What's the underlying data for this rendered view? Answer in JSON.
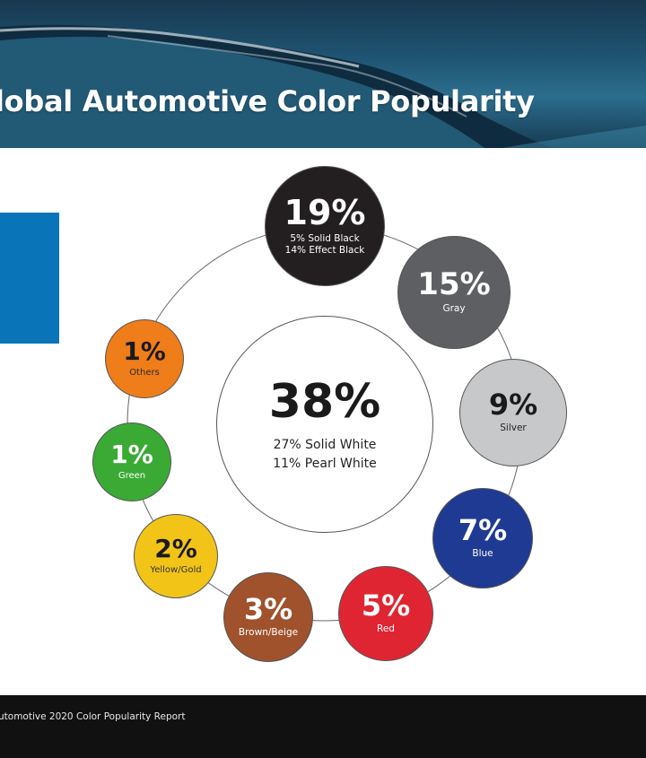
{
  "header": {
    "title": "lobal Automotive Color Popularity"
  },
  "footer": {
    "source": "utomotive 2020 Color Popularity Report"
  },
  "chart_data": {
    "type": "pie",
    "title": "lobal Automotive Color Popularity",
    "center": {
      "color": "White",
      "value": 38,
      "label": "38%",
      "details": [
        "27% Solid White",
        "11% Pearl White"
      ]
    },
    "slices": [
      {
        "name": "Black",
        "value": 19,
        "label": "19%",
        "details": [
          "5% Solid Black",
          "14% Effect Black"
        ],
        "color": "#231f20"
      },
      {
        "name": "Gray",
        "value": 15,
        "label": "15%",
        "details": [
          "Gray"
        ],
        "color": "#5d5f62"
      },
      {
        "name": "Silver",
        "value": 9,
        "label": "9%",
        "details": [
          "Silver"
        ],
        "color": "#c7c8ca"
      },
      {
        "name": "Blue",
        "value": 7,
        "label": "7%",
        "details": [
          "Blue"
        ],
        "color": "#1f3a93"
      },
      {
        "name": "Red",
        "value": 5,
        "label": "5%",
        "details": [
          "Red"
        ],
        "color": "#e02532"
      },
      {
        "name": "Brown/Beige",
        "value": 3,
        "label": "3%",
        "details": [
          "Brown/Beige"
        ],
        "color": "#a0522d"
      },
      {
        "name": "Yellow/Gold",
        "value": 2,
        "label": "2%",
        "details": [
          "Yellow/Gold"
        ],
        "color": "#f2c418"
      },
      {
        "name": "Green",
        "value": 1,
        "label": "1%",
        "details": [
          "Green"
        ],
        "color": "#3aaa35"
      },
      {
        "name": "Others",
        "value": 1,
        "label": "1%",
        "details": [
          "Others"
        ],
        "color": "#ef7d1a"
      }
    ]
  }
}
